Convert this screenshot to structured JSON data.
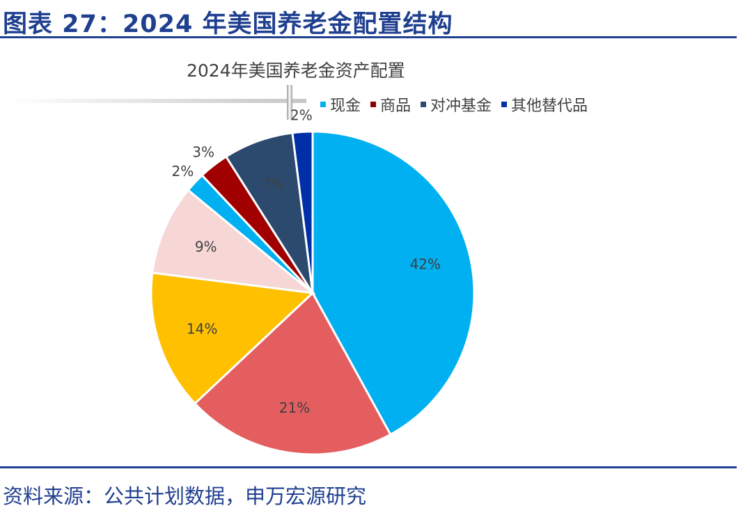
{
  "figure_title": "图表 27：2024 年美国养老金配置结构",
  "source": "资料来源：公共计划数据，申万宏源研究",
  "chart_data": {
    "type": "pie",
    "title": "2024年美国养老金资产配置",
    "legend_position": "top",
    "legend": [
      {
        "label": "现金",
        "color": "#00B0F0"
      },
      {
        "label": "商品",
        "color": "#8B0000"
      },
      {
        "label": "对冲基金",
        "color": "#2C4A6E"
      },
      {
        "label": "其他替代品",
        "color": "#002FA7"
      }
    ],
    "slices": [
      {
        "value": 42,
        "label": "42%",
        "color": "#00B0F0"
      },
      {
        "value": 21,
        "label": "21%",
        "color": "#E45E60"
      },
      {
        "value": 14,
        "label": "14%",
        "color": "#FFC000"
      },
      {
        "value": 9,
        "label": "9%",
        "color": "#F7D6D6"
      },
      {
        "value": 2,
        "label": "2%",
        "color": "#00B0F0"
      },
      {
        "value": 3,
        "label": "3%",
        "color": "#A00000"
      },
      {
        "value": 7,
        "label": "7%",
        "color": "#2C4A6E"
      },
      {
        "value": 2,
        "label": "2%",
        "color": "#002FA7"
      }
    ]
  }
}
